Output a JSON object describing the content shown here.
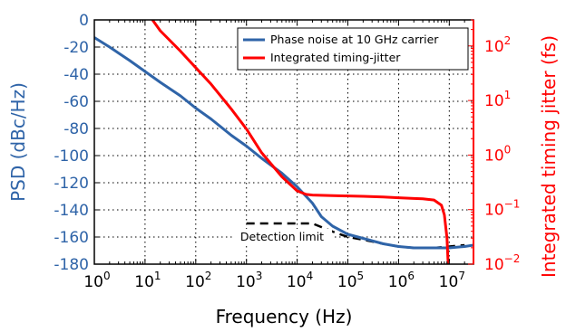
{
  "colors": {
    "psd": "#2f64a8",
    "jitter": "#ff0000",
    "detection": "#000000",
    "frame": "#000000",
    "grid": "#000000"
  },
  "chart_data": {
    "type": "line",
    "xlabel": "Frequency (Hz)",
    "ylabel_left": "PSD (dBc/Hz)",
    "ylabel_right": "Integrated timing jitter (fs)",
    "x_scale": "log",
    "xlim": [
      1,
      30000000
    ],
    "ylim_left": [
      -180,
      0
    ],
    "ylim_right": [
      0.01,
      300
    ],
    "y_right_scale": "log",
    "grid": true,
    "legend_position": "top-right",
    "x_ticks": [
      {
        "value": 1,
        "base": "10",
        "exp": "0"
      },
      {
        "value": 10,
        "base": "10",
        "exp": "1"
      },
      {
        "value": 100,
        "base": "10",
        "exp": "2"
      },
      {
        "value": 1000,
        "base": "10",
        "exp": "3"
      },
      {
        "value": 10000,
        "base": "10",
        "exp": "4"
      },
      {
        "value": 100000,
        "base": "10",
        "exp": "5"
      },
      {
        "value": 1000000,
        "base": "10",
        "exp": "6"
      },
      {
        "value": 10000000,
        "base": "10",
        "exp": "7"
      }
    ],
    "y_left_ticks": [
      {
        "value": 0,
        "label": "0"
      },
      {
        "value": -20,
        "label": "-20"
      },
      {
        "value": -40,
        "label": "-40"
      },
      {
        "value": -60,
        "label": "-60"
      },
      {
        "value": -80,
        "label": "-80"
      },
      {
        "value": -100,
        "label": "-100"
      },
      {
        "value": -120,
        "label": "-120"
      },
      {
        "value": -140,
        "label": "-140"
      },
      {
        "value": -160,
        "label": "-160"
      },
      {
        "value": -180,
        "label": "-180"
      }
    ],
    "y_right_ticks": [
      {
        "value": 0.01,
        "base": "10",
        "exp": "−2"
      },
      {
        "value": 0.1,
        "base": "10",
        "exp": "−1"
      },
      {
        "value": 1,
        "base": "10",
        "exp": "0"
      },
      {
        "value": 10,
        "base": "10",
        "exp": "1"
      },
      {
        "value": 100,
        "base": "10",
        "exp": "2"
      }
    ],
    "series": [
      {
        "name": "Phase noise at 10 GHz carrier",
        "axis": "left",
        "x": [
          1,
          2,
          5,
          10,
          20,
          50,
          100,
          200,
          500,
          1000,
          2000,
          5000,
          10000,
          20000,
          30000,
          50000,
          100000,
          200000,
          500000,
          1000000,
          2000000,
          5000000,
          10000000,
          20000000,
          30000000
        ],
        "y": [
          -13,
          -20,
          -30,
          -38,
          -46,
          -56,
          -65,
          -73,
          -85,
          -93,
          -102,
          -113,
          -123,
          -135,
          -145,
          -152,
          -158,
          -161,
          -165,
          -167,
          -168,
          -168,
          -168,
          -167,
          -166
        ]
      },
      {
        "name": "Integrated timing-jitter",
        "axis": "right",
        "x": [
          14,
          20,
          50,
          100,
          200,
          500,
          1000,
          2000,
          5000,
          10000,
          15000,
          20000,
          50000,
          100000,
          200000,
          500000,
          1000000,
          2000000,
          3000000,
          5000000,
          7000000,
          8000000,
          9000000,
          9500000
        ],
        "y": [
          300,
          190,
          80,
          40,
          20,
          7,
          3,
          1.1,
          0.4,
          0.22,
          0.19,
          0.185,
          0.18,
          0.178,
          0.175,
          0.17,
          0.165,
          0.16,
          0.158,
          0.15,
          0.12,
          0.08,
          0.03,
          0.01
        ]
      }
    ],
    "detection_limit": {
      "label": "Detection limit",
      "x": [
        1000,
        20000,
        50000,
        100000,
        200000,
        500000,
        1000000,
        2000000,
        5000000,
        10000000,
        20000000
      ],
      "y": [
        -150,
        -150,
        -156,
        -160,
        -162,
        -165,
        -167,
        -168,
        -168,
        -167,
        -166
      ]
    }
  }
}
